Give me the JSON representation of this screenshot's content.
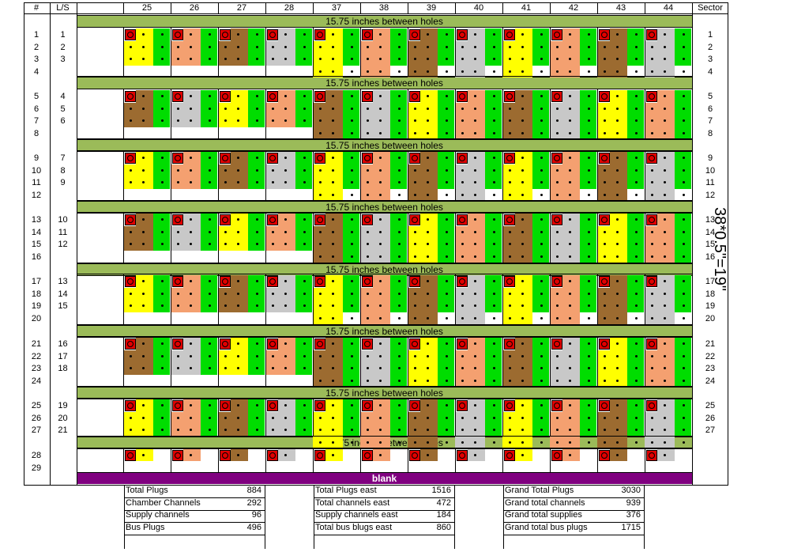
{
  "columns": {
    "row_num_header": "#",
    "ls_header": "L/S",
    "sector_header": "Sector",
    "modules": [
      "25",
      "26",
      "27",
      "28",
      "37",
      "38",
      "39",
      "40",
      "41",
      "42",
      "43",
      "44"
    ]
  },
  "band_label": "15.75 inches between holes",
  "blank_label": "blank",
  "side_note": "38*0.5\"=19\"",
  "row_numbers": [
    "1",
    "2",
    "3",
    "4",
    "5",
    "6",
    "7",
    "8",
    "9",
    "10",
    "11",
    "12",
    "13",
    "14",
    "15",
    "16",
    "17",
    "18",
    "19",
    "20",
    "21",
    "22",
    "23",
    "24",
    "25",
    "26",
    "27",
    "28",
    "29"
  ],
  "ls_numbers": [
    "1",
    "2",
    "3",
    "4",
    "5",
    "6",
    "7",
    "8",
    "9",
    "10",
    "11",
    "12",
    "13",
    "14",
    "15",
    "16",
    "17",
    "18",
    "19",
    "20",
    "21"
  ],
  "sector_numbers": [
    "1",
    "2",
    "3",
    "4",
    "5",
    "6",
    "7",
    "8",
    "9",
    "10",
    "11",
    "12",
    "13",
    "14",
    "15",
    "16",
    "17",
    "18",
    "19",
    "20",
    "21",
    "22",
    "23",
    "24",
    "25",
    "26",
    "27"
  ],
  "colors": {
    "red": "#e00000",
    "green": "#00dd00",
    "yellow": "#ffff00",
    "salmon": "#f4a070",
    "brown": "#9c6b30",
    "gray": "#c8c8c8",
    "band": "#9bbb59",
    "blank": "#800080"
  },
  "summary": {
    "block1": [
      {
        "label": "Total Plugs",
        "value": "884"
      },
      {
        "label": "Chamber Channels",
        "value": "292"
      },
      {
        "label": "Supply channels",
        "value": "96"
      },
      {
        "label": "Bus Plugs",
        "value": "496"
      }
    ],
    "block2": [
      {
        "label": "Total Plugs east",
        "value": "1516"
      },
      {
        "label": "Total channels east",
        "value": "472"
      },
      {
        "label": "Supply channels east",
        "value": "184"
      },
      {
        "label": "Total bus blugs east",
        "value": "860"
      }
    ],
    "block3": [
      {
        "label": "Grand Total Plugs",
        "value": "3030"
      },
      {
        "label": "Grand total channels",
        "value": "939"
      },
      {
        "label": "Grand total supplies",
        "value": "376"
      },
      {
        "label": "Grand total bus plugs",
        "value": "1715"
      }
    ]
  }
}
